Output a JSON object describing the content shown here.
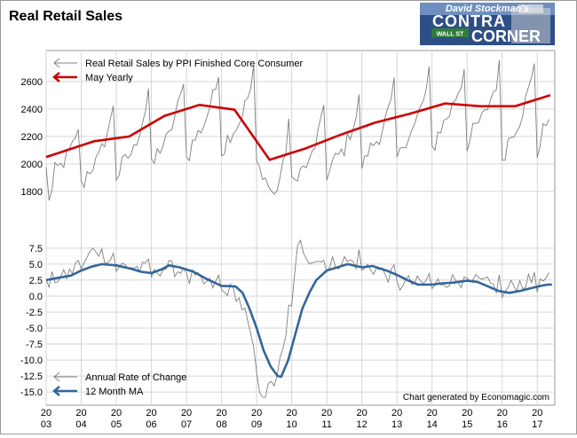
{
  "chart_data": [
    {
      "type": "line",
      "title": "Real Retail Sales",
      "ylim": [
        1650,
        2800
      ],
      "yticks": [
        1800,
        2000,
        2200,
        2400,
        2600
      ],
      "legend": "top-left",
      "grid": true,
      "series": [
        {
          "name": "Real Retail Sales by PPI Finished Core Consumer",
          "color": "#7f7f7f",
          "start": "2003-01",
          "anchors": [
            [
              2003.0,
              2000
            ],
            [
              2003.12,
              1710
            ],
            [
              2003.25,
              1950
            ],
            [
              2003.45,
              1990
            ],
            [
              2003.92,
              2200
            ],
            [
              2004.0,
              1880
            ],
            [
              2004.5,
              2040
            ],
            [
              2004.92,
              2370
            ],
            [
              2005.0,
              1950
            ],
            [
              2005.5,
              2100
            ],
            [
              2005.92,
              2480
            ],
            [
              2006.0,
              2020
            ],
            [
              2006.5,
              2200
            ],
            [
              2006.92,
              2560
            ],
            [
              2007.0,
              2080
            ],
            [
              2007.5,
              2290
            ],
            [
              2007.92,
              2620
            ],
            [
              2008.0,
              2130
            ],
            [
              2008.5,
              2300
            ],
            [
              2008.92,
              2610
            ],
            [
              2009.0,
              2050
            ],
            [
              2009.3,
              1860
            ],
            [
              2009.5,
              1760
            ],
            [
              2009.75,
              1970
            ],
            [
              2009.92,
              2260
            ],
            [
              2010.0,
              1900
            ],
            [
              2010.5,
              2000
            ],
            [
              2010.92,
              2360
            ],
            [
              2011.0,
              1960
            ],
            [
              2011.5,
              2110
            ],
            [
              2011.92,
              2400
            ],
            [
              2012.0,
              2030
            ],
            [
              2012.5,
              2200
            ],
            [
              2012.92,
              2500
            ],
            [
              2013.0,
              2080
            ],
            [
              2013.5,
              2270
            ],
            [
              2013.92,
              2590
            ],
            [
              2014.0,
              2150
            ],
            [
              2014.5,
              2370
            ],
            [
              2014.92,
              2640
            ],
            [
              2015.0,
              2180
            ],
            [
              2015.5,
              2360
            ],
            [
              2015.92,
              2640
            ],
            [
              2016.0,
              2090
            ],
            [
              2016.5,
              2320
            ],
            [
              2016.92,
              2680
            ],
            [
              2017.0,
              2120
            ],
            [
              2017.25,
              2300
            ],
            [
              2017.42,
              2450
            ]
          ]
        },
        {
          "name": "May Yearly",
          "color": "#cc0000",
          "points": [
            [
              2003.0,
              2050
            ],
            [
              2004.37,
              2165
            ],
            [
              2005.37,
              2200
            ],
            [
              2006.37,
              2350
            ],
            [
              2007.37,
              2430
            ],
            [
              2008.37,
              2395
            ],
            [
              2009.37,
              2030
            ],
            [
              2010.37,
              2110
            ],
            [
              2011.37,
              2210
            ],
            [
              2012.37,
              2300
            ],
            [
              2013.37,
              2365
            ],
            [
              2014.37,
              2440
            ],
            [
              2015.37,
              2420
            ],
            [
              2016.37,
              2420
            ],
            [
              2017.37,
              2500
            ]
          ]
        }
      ]
    },
    {
      "type": "line",
      "ylim": [
        -16.5,
        9
      ],
      "yticks": [
        7.5,
        5.0,
        2.5,
        0.0,
        -2.5,
        -5.0,
        -7.5,
        -10.0,
        -12.5,
        -15.0
      ],
      "legend": "bottom-left",
      "grid": true,
      "xticks": [
        {
          "top": "20",
          "bottom": "03"
        },
        {
          "top": "20",
          "bottom": "04"
        },
        {
          "top": "20",
          "bottom": "05"
        },
        {
          "top": "20",
          "bottom": "06"
        },
        {
          "top": "20",
          "bottom": "07"
        },
        {
          "top": "20",
          "bottom": "08"
        },
        {
          "top": "20",
          "bottom": "09"
        },
        {
          "top": "20",
          "bottom": "10"
        },
        {
          "top": "20",
          "bottom": "11"
        },
        {
          "top": "20",
          "bottom": "12"
        },
        {
          "top": "20",
          "bottom": "13"
        },
        {
          "top": "20",
          "bottom": "14"
        },
        {
          "top": "20",
          "bottom": "15"
        },
        {
          "top": "20",
          "bottom": "16"
        },
        {
          "top": "20",
          "bottom": "17"
        }
      ],
      "xlim": [
        2003.0,
        2017.5
      ],
      "series": [
        {
          "name": "Annual Rate of Change",
          "color": "#7f7f7f",
          "anchors": [
            [
              2003.0,
              2.5
            ],
            [
              2003.5,
              3.0
            ],
            [
              2004.0,
              5.0
            ],
            [
              2004.4,
              7.5
            ],
            [
              2005.0,
              5.0
            ],
            [
              2005.5,
              4.5
            ],
            [
              2006.0,
              4.0
            ],
            [
              2006.5,
              4.5
            ],
            [
              2007.0,
              3.5
            ],
            [
              2007.5,
              2.0
            ],
            [
              2008.0,
              1.5
            ],
            [
              2008.4,
              0.5
            ],
            [
              2008.7,
              -3.0
            ],
            [
              2009.0,
              -12.0
            ],
            [
              2009.2,
              -15.5
            ],
            [
              2009.5,
              -13.5
            ],
            [
              2009.8,
              -8.0
            ],
            [
              2010.0,
              0.0
            ],
            [
              2010.2,
              8.5
            ],
            [
              2010.5,
              6.0
            ],
            [
              2011.0,
              5.0
            ],
            [
              2011.5,
              5.5
            ],
            [
              2012.0,
              5.0
            ],
            [
              2012.5,
              4.0
            ],
            [
              2013.0,
              2.5
            ],
            [
              2013.5,
              2.0
            ],
            [
              2014.0,
              2.0
            ],
            [
              2014.5,
              2.5
            ],
            [
              2015.0,
              2.5
            ],
            [
              2015.5,
              2.0
            ],
            [
              2016.0,
              1.0
            ],
            [
              2016.5,
              2.0
            ],
            [
              2017.0,
              2.5
            ],
            [
              2017.42,
              2.5
            ]
          ]
        },
        {
          "name": "12 Month MA",
          "color": "#336699",
          "points": [
            [
              2003.0,
              2.5
            ],
            [
              2003.3,
              2.8
            ],
            [
              2003.7,
              3.2
            ],
            [
              2004.0,
              4.0
            ],
            [
              2004.3,
              4.6
            ],
            [
              2004.6,
              5.0
            ],
            [
              2005.0,
              4.8
            ],
            [
              2005.4,
              4.3
            ],
            [
              2005.7,
              3.8
            ],
            [
              2006.0,
              3.6
            ],
            [
              2006.3,
              4.2
            ],
            [
              2006.5,
              4.8
            ],
            [
              2006.8,
              4.5
            ],
            [
              2007.2,
              3.8
            ],
            [
              2007.6,
              2.6
            ],
            [
              2008.0,
              1.6
            ],
            [
              2008.4,
              1.5
            ],
            [
              2008.6,
              0.5
            ],
            [
              2008.8,
              -2.0
            ],
            [
              2009.0,
              -5.0
            ],
            [
              2009.2,
              -8.5
            ],
            [
              2009.4,
              -11.0
            ],
            [
              2009.6,
              -12.5
            ],
            [
              2009.7,
              -12.6
            ],
            [
              2009.9,
              -10.0
            ],
            [
              2010.1,
              -6.0
            ],
            [
              2010.3,
              -2.0
            ],
            [
              2010.5,
              0.5
            ],
            [
              2010.7,
              2.5
            ],
            [
              2011.0,
              4.0
            ],
            [
              2011.3,
              4.5
            ],
            [
              2011.6,
              5.0
            ],
            [
              2012.0,
              4.5
            ],
            [
              2012.3,
              4.7
            ],
            [
              2012.7,
              4.0
            ],
            [
              2013.0,
              3.3
            ],
            [
              2013.3,
              2.5
            ],
            [
              2013.6,
              1.8
            ],
            [
              2014.0,
              1.8
            ],
            [
              2014.3,
              2.0
            ],
            [
              2014.6,
              2.1
            ],
            [
              2015.0,
              2.4
            ],
            [
              2015.3,
              2.2
            ],
            [
              2015.6,
              1.5
            ],
            [
              2015.9,
              0.8
            ],
            [
              2016.2,
              0.5
            ],
            [
              2016.5,
              0.8
            ],
            [
              2016.8,
              1.2
            ],
            [
              2017.1,
              1.6
            ],
            [
              2017.3,
              1.8
            ],
            [
              2017.42,
              1.8
            ]
          ]
        }
      ]
    }
  ],
  "credit": "Chart generated by Economagic.com",
  "logo": {
    "line1": "David Stockman's",
    "line2": "CONTRA",
    "line3": "CORNER",
    "sign": "WALL ST"
  }
}
